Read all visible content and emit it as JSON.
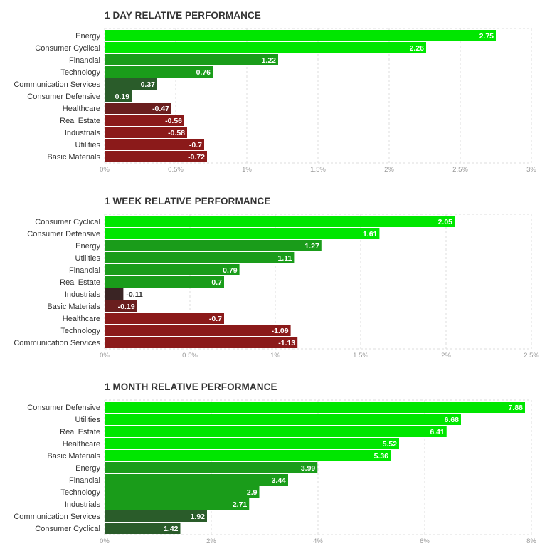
{
  "chart_data": [
    {
      "type": "bar",
      "orientation": "horizontal",
      "title": "1 DAY RELATIVE PERFORMANCE",
      "categories": [
        "Energy",
        "Consumer Cyclical",
        "Financial",
        "Technology",
        "Communication Services",
        "Consumer Defensive",
        "Healthcare",
        "Real Estate",
        "Industrials",
        "Utilities",
        "Basic Materials"
      ],
      "values": [
        2.75,
        2.26,
        1.22,
        0.76,
        0.37,
        0.19,
        -0.47,
        -0.56,
        -0.58,
        -0.7,
        -0.72
      ],
      "value_labels": [
        "2.75",
        "2.26",
        "1.22",
        "0.76",
        "0.37",
        "0.19",
        "-0.47",
        "-0.56",
        "-0.58",
        "-0.7",
        "-0.72"
      ],
      "xlim": [
        0,
        3
      ],
      "ticks": [
        0,
        0.5,
        1,
        1.5,
        2,
        2.5,
        3
      ],
      "tick_labels": [
        "0%",
        "0.5%",
        "1%",
        "1.5%",
        "2%",
        "2.5%",
        "3%"
      ],
      "grid": true
    },
    {
      "type": "bar",
      "orientation": "horizontal",
      "title": "1 WEEK RELATIVE PERFORMANCE",
      "categories": [
        "Consumer Cyclical",
        "Consumer Defensive",
        "Energy",
        "Utilities",
        "Financial",
        "Real Estate",
        "Industrials",
        "Basic Materials",
        "Healthcare",
        "Technology",
        "Communication Services"
      ],
      "values": [
        2.05,
        1.61,
        1.27,
        1.11,
        0.79,
        0.7,
        -0.11,
        -0.19,
        -0.7,
        -1.09,
        -1.13
      ],
      "value_labels": [
        "2.05",
        "1.61",
        "1.27",
        "1.11",
        "0.79",
        "0.7",
        "-0.11",
        "-0.19",
        "-0.7",
        "-1.09",
        "-1.13"
      ],
      "xlim": [
        0,
        2.5
      ],
      "ticks": [
        0,
        0.5,
        1,
        1.5,
        2,
        2.5
      ],
      "tick_labels": [
        "0%",
        "0.5%",
        "1%",
        "1.5%",
        "2%",
        "2.5%"
      ],
      "grid": true
    },
    {
      "type": "bar",
      "orientation": "horizontal",
      "title": "1 MONTH RELATIVE PERFORMANCE",
      "categories": [
        "Consumer Defensive",
        "Utilities",
        "Real Estate",
        "Healthcare",
        "Basic Materials",
        "Energy",
        "Financial",
        "Technology",
        "Industrials",
        "Communication Services",
        "Consumer Cyclical"
      ],
      "values": [
        7.88,
        6.68,
        6.41,
        5.52,
        5.36,
        3.99,
        3.44,
        2.9,
        2.71,
        1.92,
        1.42
      ],
      "value_labels": [
        "7.88",
        "6.68",
        "6.41",
        "5.52",
        "5.36",
        "3.99",
        "3.44",
        "2.9",
        "2.71",
        "1.92",
        "1.42"
      ],
      "xlim": [
        0,
        8
      ],
      "ticks": [
        0,
        2,
        4,
        6,
        8
      ],
      "tick_labels": [
        "0%",
        "2%",
        "4%",
        "6%",
        "8%"
      ],
      "grid": true
    }
  ],
  "colors": {
    "pos_strong": "#00e600",
    "pos_medium": "#1a9c1a",
    "pos_weak": "#2a5c2a",
    "neg_strong": "#8b1a1a",
    "neg_medium": "#6a1e1e",
    "neg_weak": "#3a2424",
    "grid": "#dddddd",
    "text": "#333333",
    "tick": "#999999"
  }
}
